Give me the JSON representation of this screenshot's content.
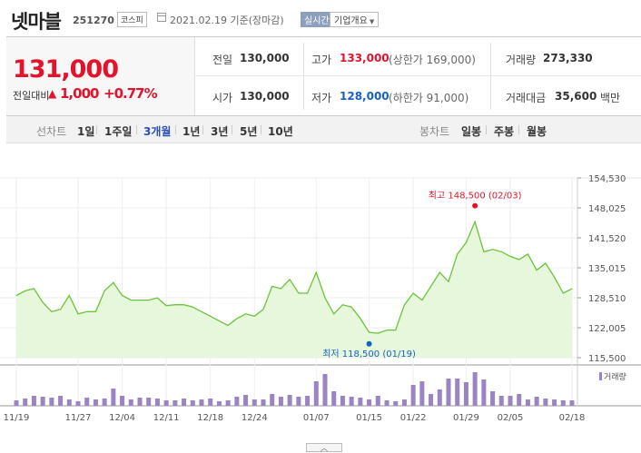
{
  "stock": {
    "name": "넷마블",
    "code": "251270",
    "market": "코스피",
    "as_of": "2021.02.19 기준(장마감)",
    "realtime": "실시간",
    "company_info": "기업개요"
  },
  "quote": {
    "price": "131,000",
    "change_label": "전일대비",
    "change_value": "1,000",
    "change_pct": "+0.77%",
    "prev_close_label": "전일",
    "prev_close": "130,000",
    "high_label": "고가",
    "high": "133,000",
    "upper_limit": "(상한가 169,000)",
    "volume_label": "거래량",
    "volume": "273,330",
    "open_label": "시가",
    "open": "130,000",
    "low_label": "저가",
    "low": "128,000",
    "lower_limit": "(하한가 91,000)",
    "amount_label": "거래대금",
    "amount": "35,600",
    "amount_unit": "백만"
  },
  "period_bar": {
    "chart_label": "선차트",
    "periods": [
      "1일",
      "1주일",
      "3개월",
      "1년",
      "3년",
      "5년",
      "10년"
    ],
    "active": "3개월",
    "candle_label": "봉차트",
    "candles": [
      "일봉",
      "주봉",
      "월봉"
    ]
  },
  "chart_data": {
    "type": "area",
    "x_labels": [
      "11/19",
      "11/27",
      "12/04",
      "12/11",
      "12/18",
      "12/24",
      "01/07",
      "01/15",
      "01/22",
      "01/29",
      "02/05",
      "02/18"
    ],
    "y_ticks": [
      "154,530",
      "148,025",
      "141,520",
      "135,015",
      "128,510",
      "122,005",
      "115,500"
    ],
    "ylim": [
      115500,
      154530
    ],
    "prices": [
      129000,
      130000,
      130500,
      127500,
      125500,
      126000,
      129000,
      125000,
      125500,
      125500,
      130000,
      131800,
      129000,
      128000,
      128000,
      128000,
      128500,
      126800,
      127000,
      127000,
      126500,
      125500,
      124500,
      123500,
      122500,
      124000,
      125000,
      124500,
      126000,
      131000,
      130500,
      132500,
      129500,
      129500,
      134000,
      128500,
      125000,
      127000,
      126500,
      124000,
      121000,
      120800,
      121500,
      121500,
      127000,
      129500,
      128000,
      131000,
      134000,
      132000,
      138000,
      140500,
      145000,
      138500,
      139000,
      138500,
      137500,
      136800,
      138000,
      134500,
      136000,
      133000,
      129500,
      130500
    ],
    "volumes": [
      6,
      8,
      11,
      10,
      9,
      11,
      7,
      5,
      9,
      7,
      8,
      19,
      11,
      7,
      9,
      9,
      8,
      6,
      6,
      8,
      6,
      7,
      8,
      5,
      6,
      10,
      12,
      7,
      7,
      13,
      10,
      12,
      10,
      11,
      27,
      35,
      16,
      11,
      10,
      9,
      7,
      11,
      6,
      5,
      7,
      23,
      27,
      13,
      18,
      30,
      30,
      26,
      37,
      29,
      16,
      11,
      11,
      13,
      7,
      10,
      8,
      7,
      6,
      6
    ],
    "max_label": "최고 148,500 (02/03)",
    "min_label": "최저 118,500 (01/19)",
    "max_value": 148500,
    "min_value": 118500,
    "max_index": 52,
    "min_index": 40,
    "volume_legend": "거래량",
    "line_color": "#6ac43a",
    "fill_color": "#e6f7dc",
    "volume_color": "#9a84c4",
    "max_marker_color": "#e4132b",
    "min_marker_color": "#1760c4"
  },
  "scroll_icon": "chevron-up-icon"
}
